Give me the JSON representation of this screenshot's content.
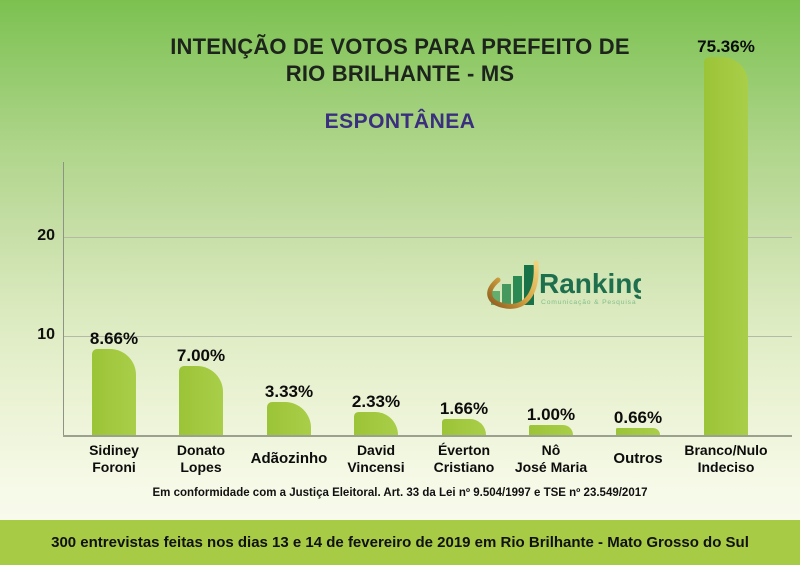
{
  "header": {
    "title_line1": "INTENÇÃO DE VOTOS PARA PREFEITO DE",
    "title_line2": "RIO BRILHANTE - MS",
    "subtitle": "ESPONTÂNEA"
  },
  "chart_data": {
    "type": "bar",
    "title": "INTENÇÃO DE VOTOS PARA PREFEITO DE RIO BRILHANTE - MS",
    "subtitle": "ESPONTÂNEA",
    "categories": [
      "Sidiney Foroni",
      "Donato Lopes",
      "Adãozinho",
      "David Vincensi",
      "Éverton Cristiano",
      "Nô José Maria",
      "Outros",
      "Branco/Nulo Indeciso"
    ],
    "category_lines": [
      [
        "Sidiney",
        "Foroni"
      ],
      [
        "Donato",
        "Lopes"
      ],
      [
        "Adãozinho"
      ],
      [
        "David",
        "Vincensi"
      ],
      [
        "Éverton",
        "Cristiano"
      ],
      [
        "Nô",
        "José Maria"
      ],
      [
        "Outros"
      ],
      [
        "Branco/Nulo",
        "Indeciso"
      ]
    ],
    "values": [
      8.66,
      7.0,
      3.33,
      2.33,
      1.66,
      1.0,
      0.66,
      75.36
    ],
    "value_labels": [
      "8.66%",
      "7.00%",
      "3.33%",
      "2.33%",
      "1.66%",
      "1.00%",
      "0.66%",
      "75.36%"
    ],
    "xlabel": "",
    "ylabel": "",
    "y_ticks": [
      10,
      20
    ],
    "ylim": [
      0,
      27
    ],
    "grid": true,
    "legend": false,
    "bar_color": "#A2C93C"
  },
  "logo": {
    "name": "Ranking",
    "tagline": "Comunicação & Pesquisa"
  },
  "footnote": "Em conformidade com a Justiça Eleitoral. Art. 33 da Lei nº 9.504/1997 e TSE nº 23.549/2017",
  "footer": "300 entrevistas feitas nos dias 13 e 14 de fevereiro de 2019 em Rio Brilhante - Mato Grosso do Sul",
  "colors": {
    "background_top": "#7CC150",
    "background_bottom": "#FBFDF2",
    "bar": "#A2C93C",
    "subtitle_text": "#3A2F7E",
    "footer_bar": "#A7CB45",
    "logo_text_green": "#1E6F4E",
    "logo_gold": "#D9A845"
  }
}
